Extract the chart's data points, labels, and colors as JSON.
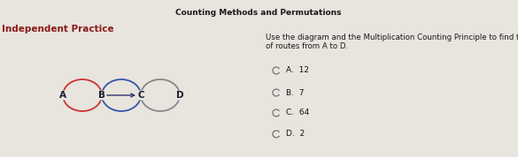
{
  "title": "Counting Methods and Permutations",
  "section_label": "Independent Practice",
  "question_text": "Use the diagram and the Multiplication Counting Principle to find the number\nof routes from A to D.",
  "choices": [
    "A.  12",
    "B.  7",
    "C.  64",
    "D.  2"
  ],
  "nodes": [
    "A",
    "B",
    "C",
    "D"
  ],
  "bg_color": "#e8e4de",
  "title_color": "#1a1a1a",
  "section_color": "#8b1a1a",
  "loop_color_1": "#cc3333",
  "loop_color_2": "#3355aa",
  "loop_color_3": "#888888",
  "arrow_color": "#333366",
  "radio_color": "#666666",
  "choice_text_color": "#111111",
  "title_fontsize": 6.5,
  "section_fontsize": 7.5,
  "question_fontsize": 6.2,
  "choice_fontsize": 6.5
}
